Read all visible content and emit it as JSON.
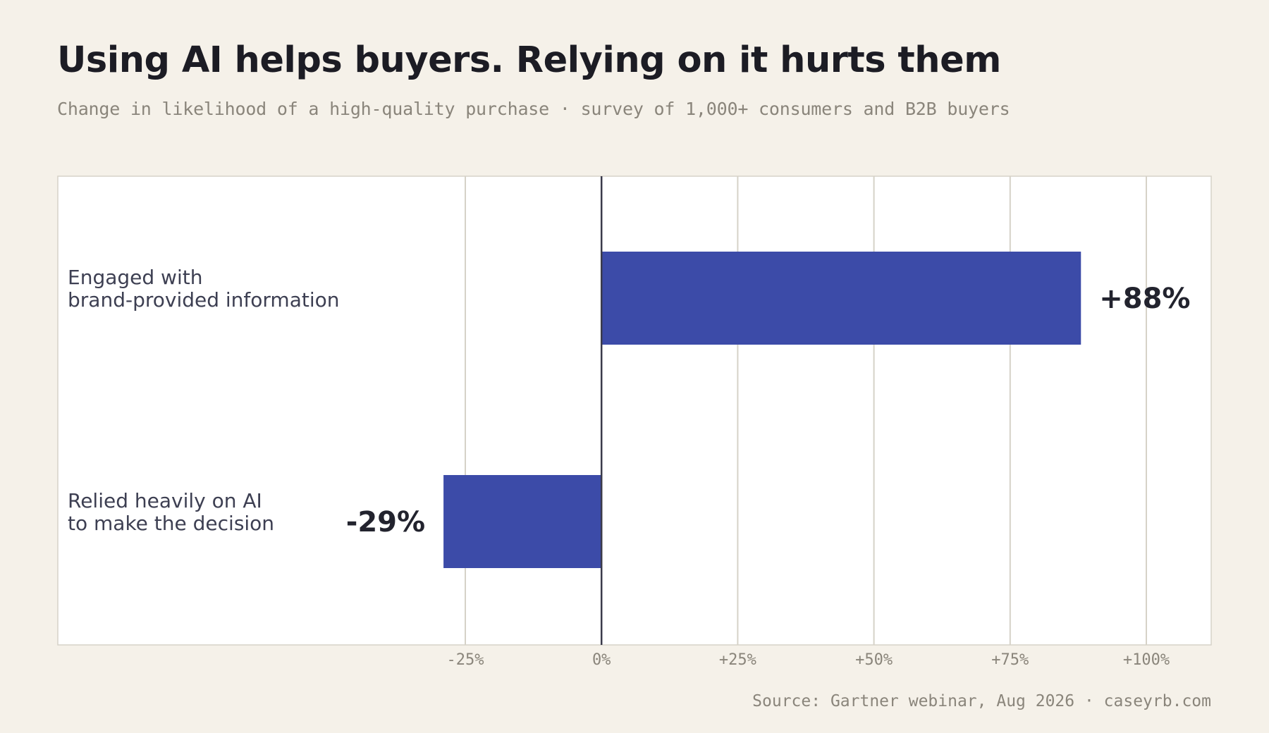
{
  "header": {
    "title": "Using AI helps buyers. Relying on it hurts them",
    "subtitle": "Change in likelihood of a high-quality purchase · survey of 1,000+ consumers and B2B buyers"
  },
  "footer": {
    "source": "Source: Gartner webinar, Aug 2026 · caseyrb.com"
  },
  "colors": {
    "background": "#f5f1e9",
    "bar": "#3c4ba8",
    "gridline": "#d6d2c8",
    "zero_line": "#3a3a4a",
    "plot_background": "#ffffff"
  },
  "chart_data": {
    "type": "bar",
    "orientation": "horizontal",
    "title": "Using AI helps buyers. Relying on it hurts them",
    "subtitle": "Change in likelihood of a high-quality purchase · survey of 1,000+ consumers and B2B buyers",
    "categories": [
      [
        "Engaged with",
        "brand-provided information"
      ],
      [
        "Relied heavily on AI",
        "to make the decision"
      ]
    ],
    "values": [
      88,
      -29
    ],
    "value_labels": [
      "+88%",
      "-29%"
    ],
    "xlim": [
      -25,
      100
    ],
    "ticks": [
      -25,
      0,
      25,
      50,
      75,
      100
    ],
    "tick_labels": [
      "-25%",
      "0%",
      "+25%",
      "+50%",
      "+75%",
      "+100%"
    ],
    "grid": true,
    "legend": "none"
  }
}
